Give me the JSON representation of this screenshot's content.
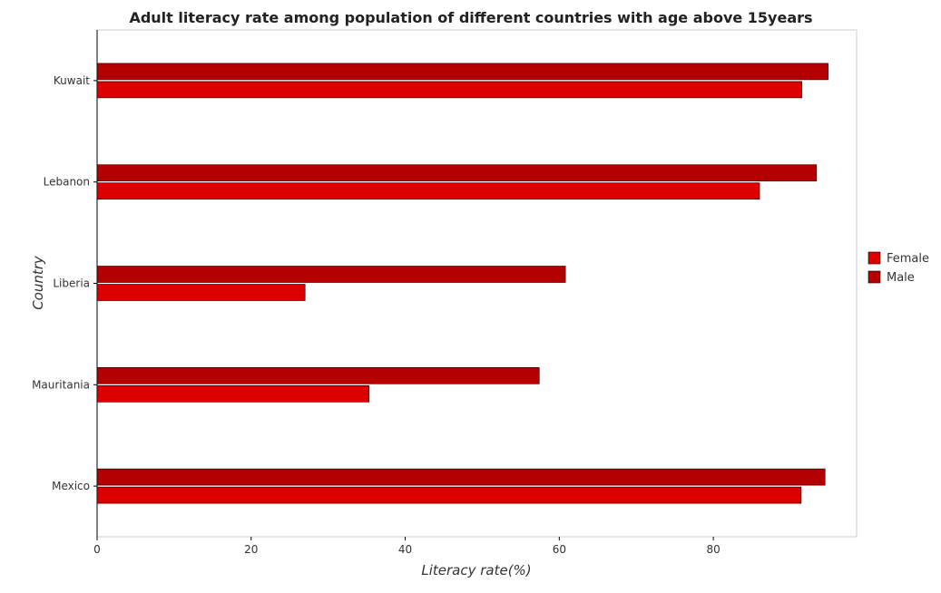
{
  "chart_data": {
    "type": "bar",
    "orientation": "horizontal",
    "title": "Adult literacy rate among population of different countries with age above 15years",
    "xlabel": "Literacy rate(%)",
    "ylabel": "Country",
    "categories": [
      "Kuwait",
      "Lebanon",
      "Liberia",
      "Mauritania",
      "Mexico"
    ],
    "series": [
      {
        "name": "Female",
        "color": "#dd0000",
        "values": [
          91.5,
          86.0,
          27.0,
          35.3,
          91.4
        ]
      },
      {
        "name": "Male",
        "color": "#b30000",
        "values": [
          94.9,
          93.4,
          60.8,
          57.4,
          94.5
        ]
      }
    ],
    "xlim": [
      0,
      98.6
    ],
    "xticks": [
      0,
      20,
      40,
      60,
      80
    ],
    "grid": false,
    "legend_position": "right"
  }
}
